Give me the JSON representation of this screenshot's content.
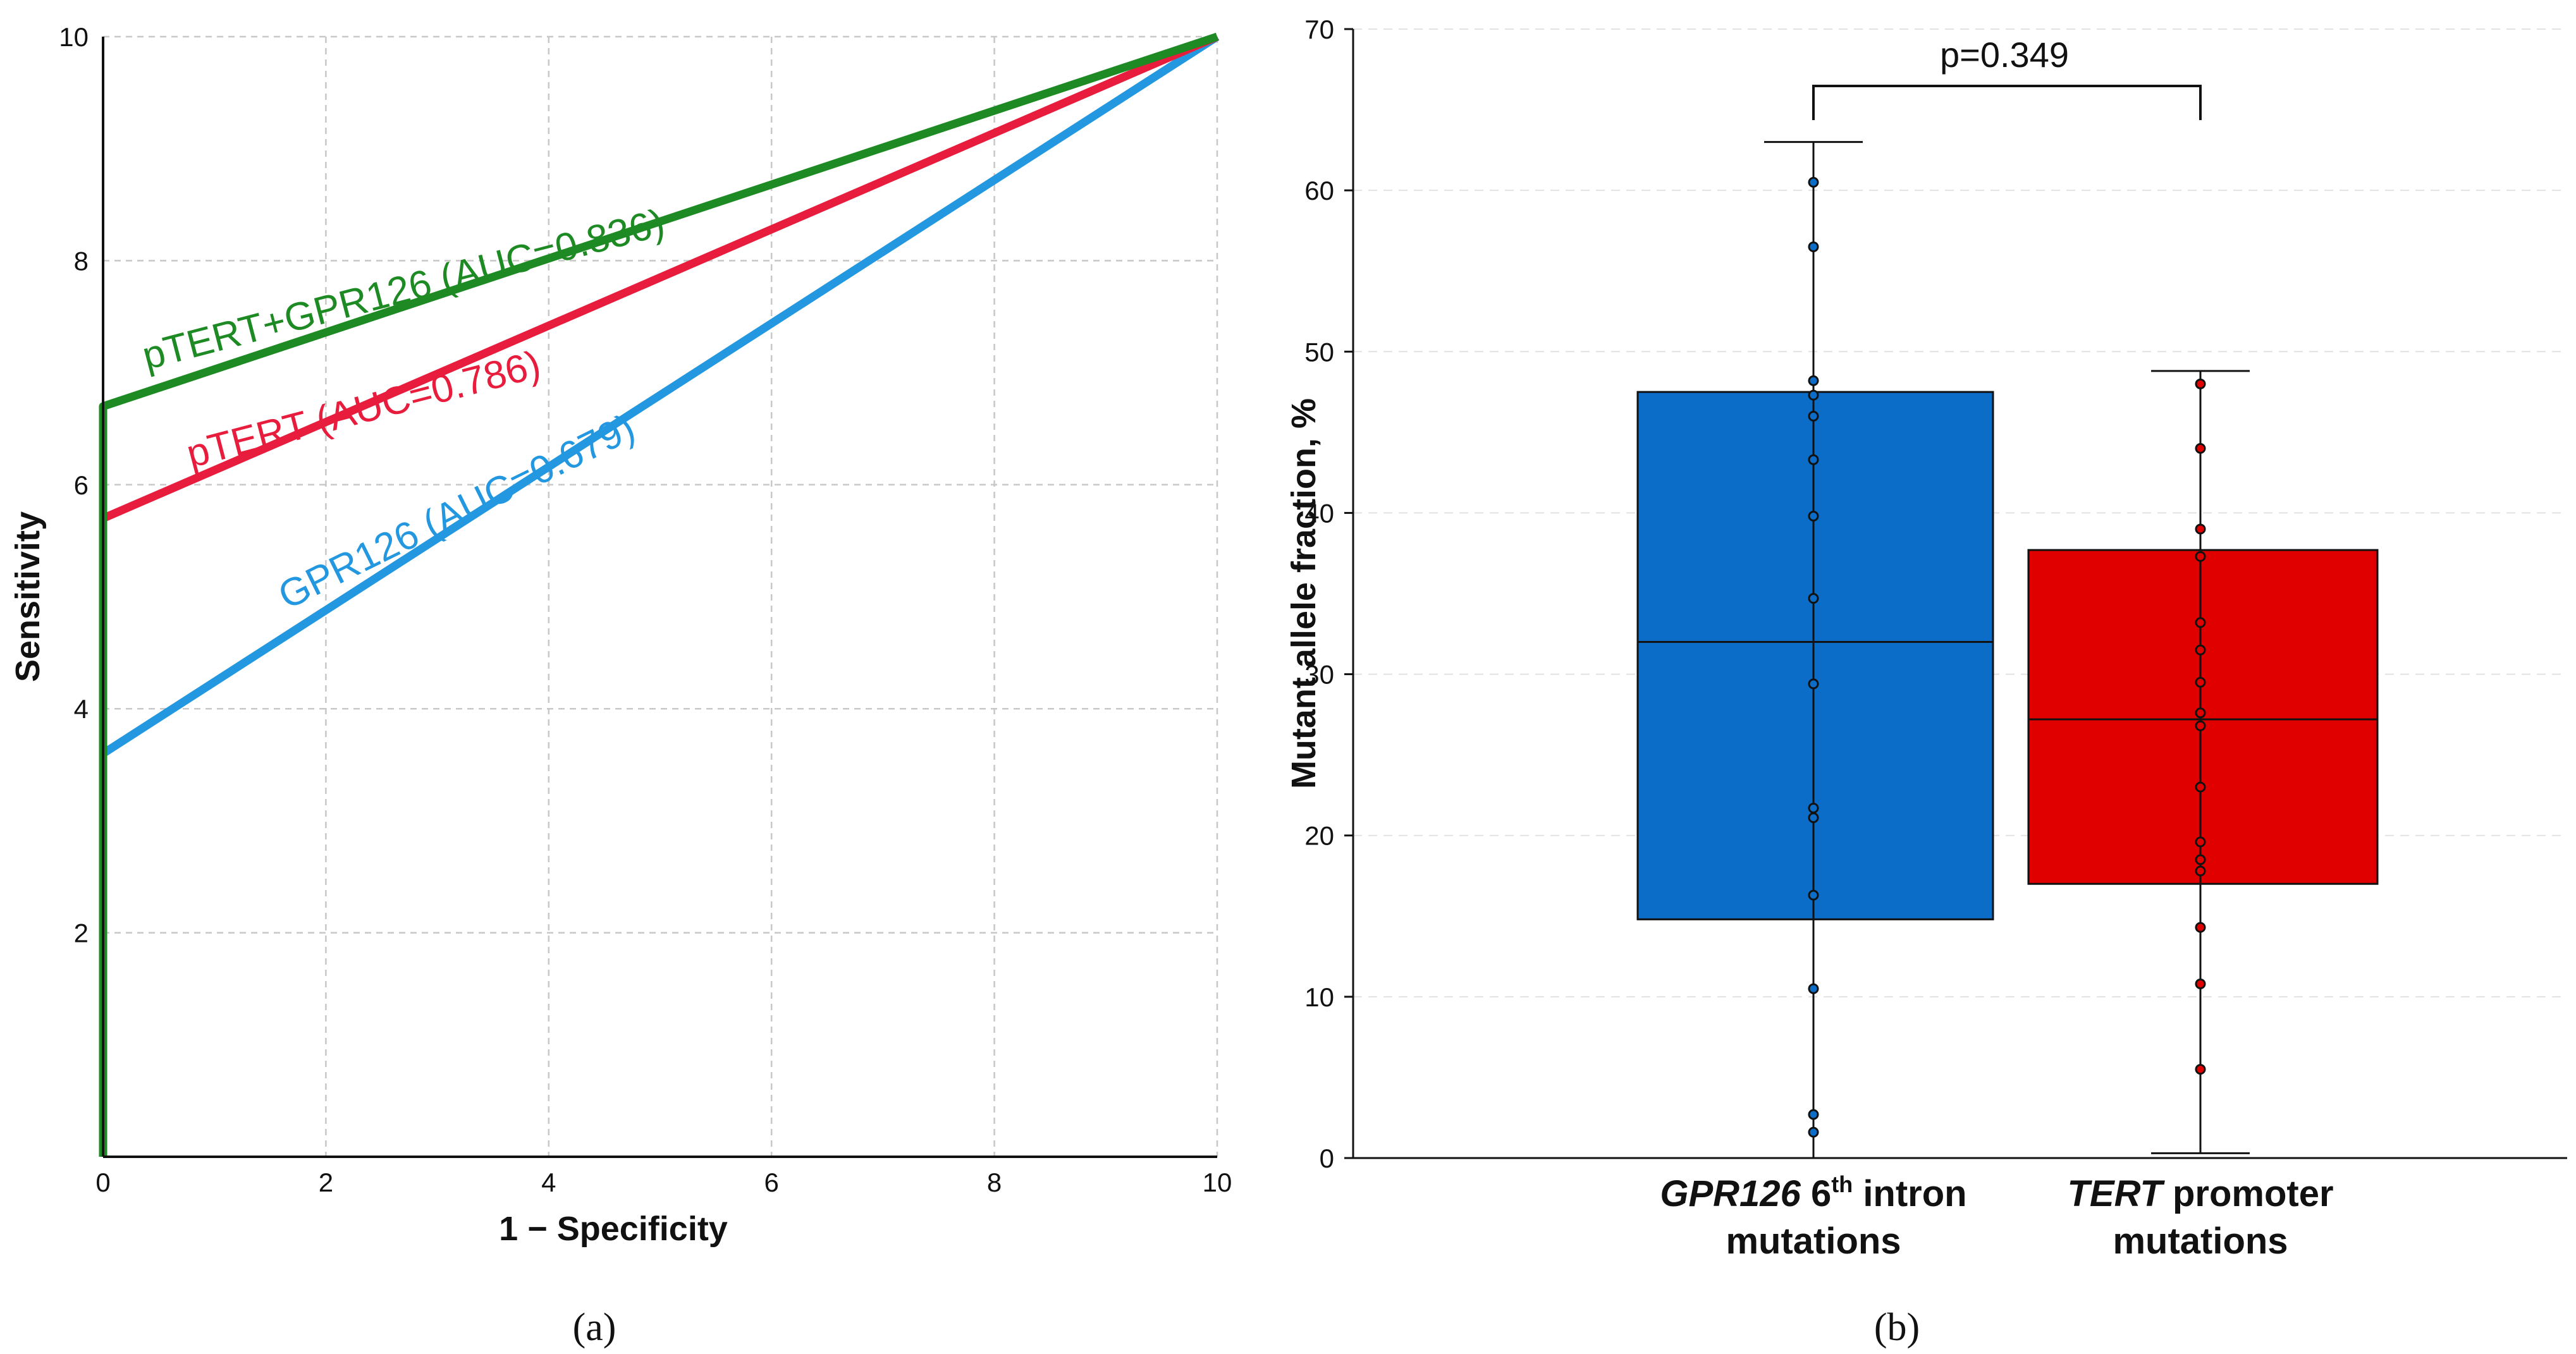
{
  "chart_data": [
    {
      "type": "line",
      "panel_label": "(a)",
      "xlabel": "1 − Specificity",
      "ylabel": "Sensitivity",
      "xlim": [
        0,
        10
      ],
      "ylim": [
        0,
        10
      ],
      "x_tick_labels": [
        "0",
        "2",
        "4",
        "6",
        "8",
        "10"
      ],
      "y_tick_labels": [
        "2",
        "4",
        "6",
        "8",
        "10"
      ],
      "grid": true,
      "series": [
        {
          "name": "pTERT+GPR126",
          "label": "pTERT+GPR126 (AUC=0.836)",
          "color": "#1e8a24",
          "x": [
            0,
            0,
            10
          ],
          "y": [
            0,
            6.7,
            10
          ]
        },
        {
          "name": "pTERT",
          "label": "pTERT (AUC=0.786)",
          "color": "#e81c3c",
          "x": [
            0,
            10
          ],
          "y": [
            5.7,
            10
          ]
        },
        {
          "name": "GPR126",
          "label": "GPR126 (AUC=0.679)",
          "color": "#2398e0",
          "x": [
            0,
            10
          ],
          "y": [
            3.6,
            10
          ]
        }
      ]
    },
    {
      "type": "box",
      "panel_label": "(b)",
      "ylabel": "Mutant allele fraction, %",
      "ylim": [
        0,
        70
      ],
      "y_tick_labels": [
        "0",
        "10",
        "20",
        "30",
        "40",
        "50",
        "60",
        "70"
      ],
      "annotation": "p=0.349",
      "groups": [
        {
          "name_italic": "GPR126",
          "name_rest_line1": " 6",
          "superscript": "th",
          "name_rest_line1b": " intron",
          "name_line2": "mutations",
          "color": "#0b6dc7",
          "whisker_low": 0,
          "q1": 14.8,
          "median": 32,
          "q3": 47.5,
          "whisker_high": 63,
          "points": [
            60.5,
            56.5,
            48.2,
            47.3,
            46,
            43.3,
            39.8,
            34.7,
            29.4,
            21.7,
            21.1,
            16.3,
            10.5,
            2.7,
            1.6
          ]
        },
        {
          "name_italic": "TERT",
          "name_rest_line1": " promoter",
          "superscript": "",
          "name_rest_line1b": "",
          "name_line2": "mutations",
          "color": "#e00000",
          "whisker_low": 0.3,
          "q1": 17,
          "median": 27.2,
          "q3": 37.7,
          "whisker_high": 48.8,
          "points": [
            48,
            44,
            39,
            37.3,
            33.2,
            31.5,
            29.5,
            27.6,
            26.8,
            23,
            19.6,
            18.5,
            17.8,
            14.3,
            10.8,
            5.5
          ]
        }
      ]
    }
  ]
}
